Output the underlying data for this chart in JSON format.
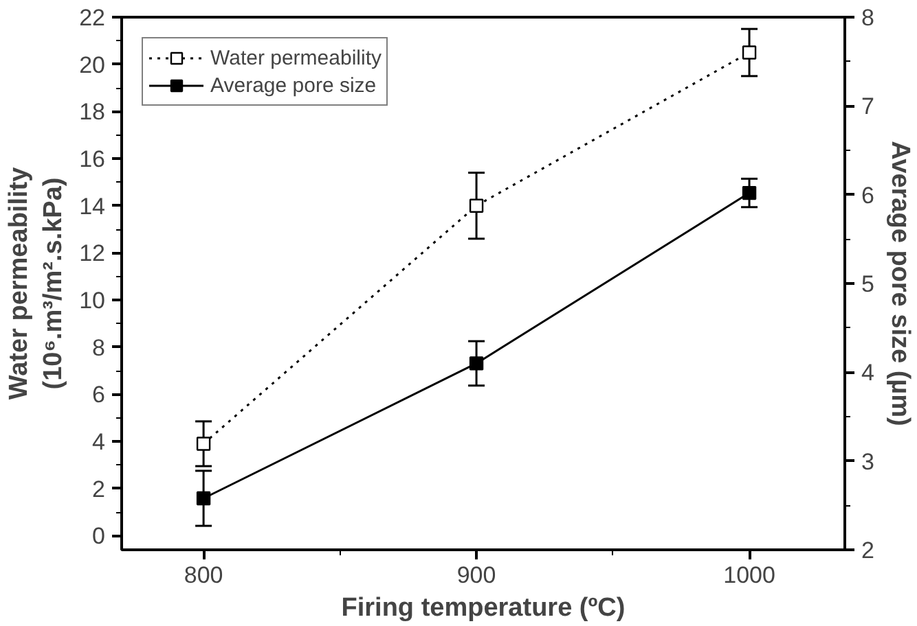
{
  "chart_data": {
    "type": "line",
    "xlabel": "Firing temperature (ºC)",
    "ylabel": "Water permeability\n(10⁶.m³/m².s.kPa)",
    "y2label": "Average pore size (µm)",
    "x": [
      800,
      900,
      1000
    ],
    "xlim": [
      770,
      1035
    ],
    "xticks": [
      800,
      900,
      1000
    ],
    "ylim": [
      -0.6,
      22
    ],
    "yticks": [
      0,
      2,
      4,
      6,
      8,
      10,
      12,
      14,
      16,
      18,
      20,
      22
    ],
    "y2lim": [
      2,
      8
    ],
    "y2ticks": [
      2,
      3,
      4,
      5,
      6,
      7,
      8
    ],
    "legend": "top left",
    "grid": false,
    "series": [
      {
        "name": "Water permeability",
        "color": "#000000",
        "values": [
          3.9,
          14.0,
          20.5
        ],
        "errors": [
          0.95,
          1.4,
          1.0
        ],
        "marker": "square",
        "line_style": "dotted"
      },
      {
        "name": "Average pore size",
        "color": "#000000",
        "values": [
          2.58,
          4.1,
          6.02
        ],
        "errors": [
          0.31,
          0.25,
          0.16
        ],
        "marker": "square",
        "line_style": "solid",
        "axis": "y2"
      }
    ]
  }
}
